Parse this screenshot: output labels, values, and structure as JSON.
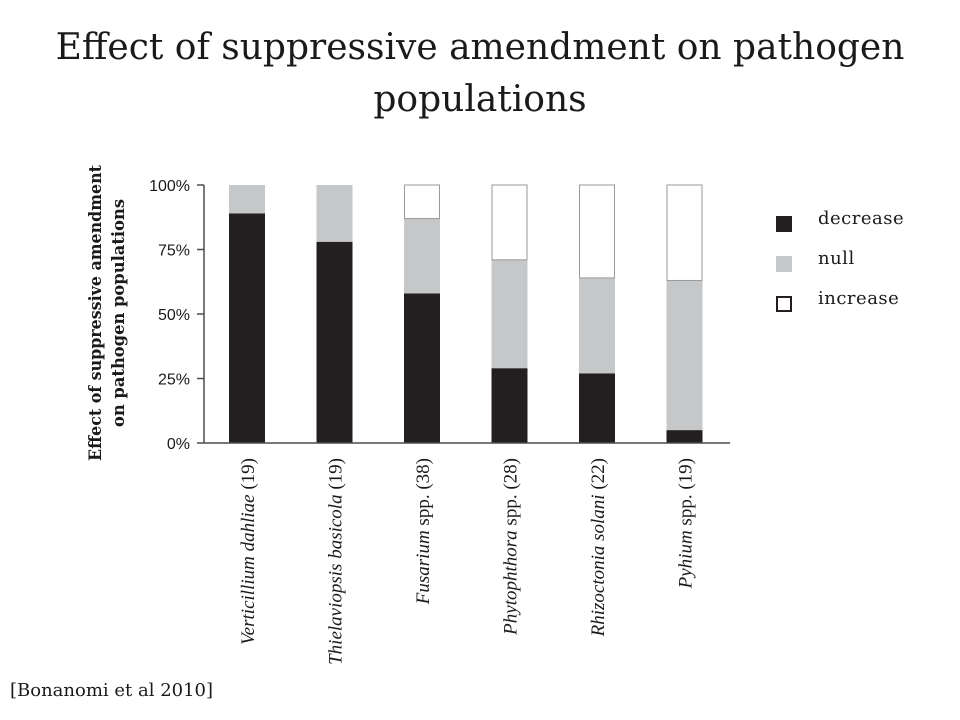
{
  "slide": {
    "title": "Effect of suppressive amendment on pathogen populations",
    "citation": "[Bonanomi et al 2010]"
  },
  "colors": {
    "decrease": "#231f20",
    "null": "#c6c7c8",
    "increase": "#ffffff",
    "axis": "#4d4d4d"
  },
  "chart_data": {
    "type": "bar",
    "stacked": true,
    "ylabel": "Effect of suppressive amendment on pathogen populations",
    "ylim": [
      0,
      100
    ],
    "yticks": [
      "0%",
      "25%",
      "50%",
      "75%",
      "100%"
    ],
    "categories": [
      {
        "italic": "Verticillium dahliae",
        "normal": " (19)"
      },
      {
        "italic": "Thielaviopsis basicola",
        "normal": " (19)"
      },
      {
        "italic": "Fusarium",
        "normal": " spp. (38)"
      },
      {
        "italic": "Phytophthora",
        "normal": " spp. (28)"
      },
      {
        "italic": "Rhizoctonia solani",
        "normal": " (22)"
      },
      {
        "italic": "Pyhium",
        "normal": " spp. (19)"
      }
    ],
    "series": [
      {
        "name": "decrease",
        "values": [
          89,
          78,
          58,
          29,
          27,
          5
        ]
      },
      {
        "name": "null",
        "values": [
          11,
          22,
          29,
          42,
          37,
          58
        ]
      },
      {
        "name": "increase",
        "values": [
          0,
          0,
          13,
          29,
          36,
          37
        ]
      }
    ],
    "legend": "right"
  }
}
